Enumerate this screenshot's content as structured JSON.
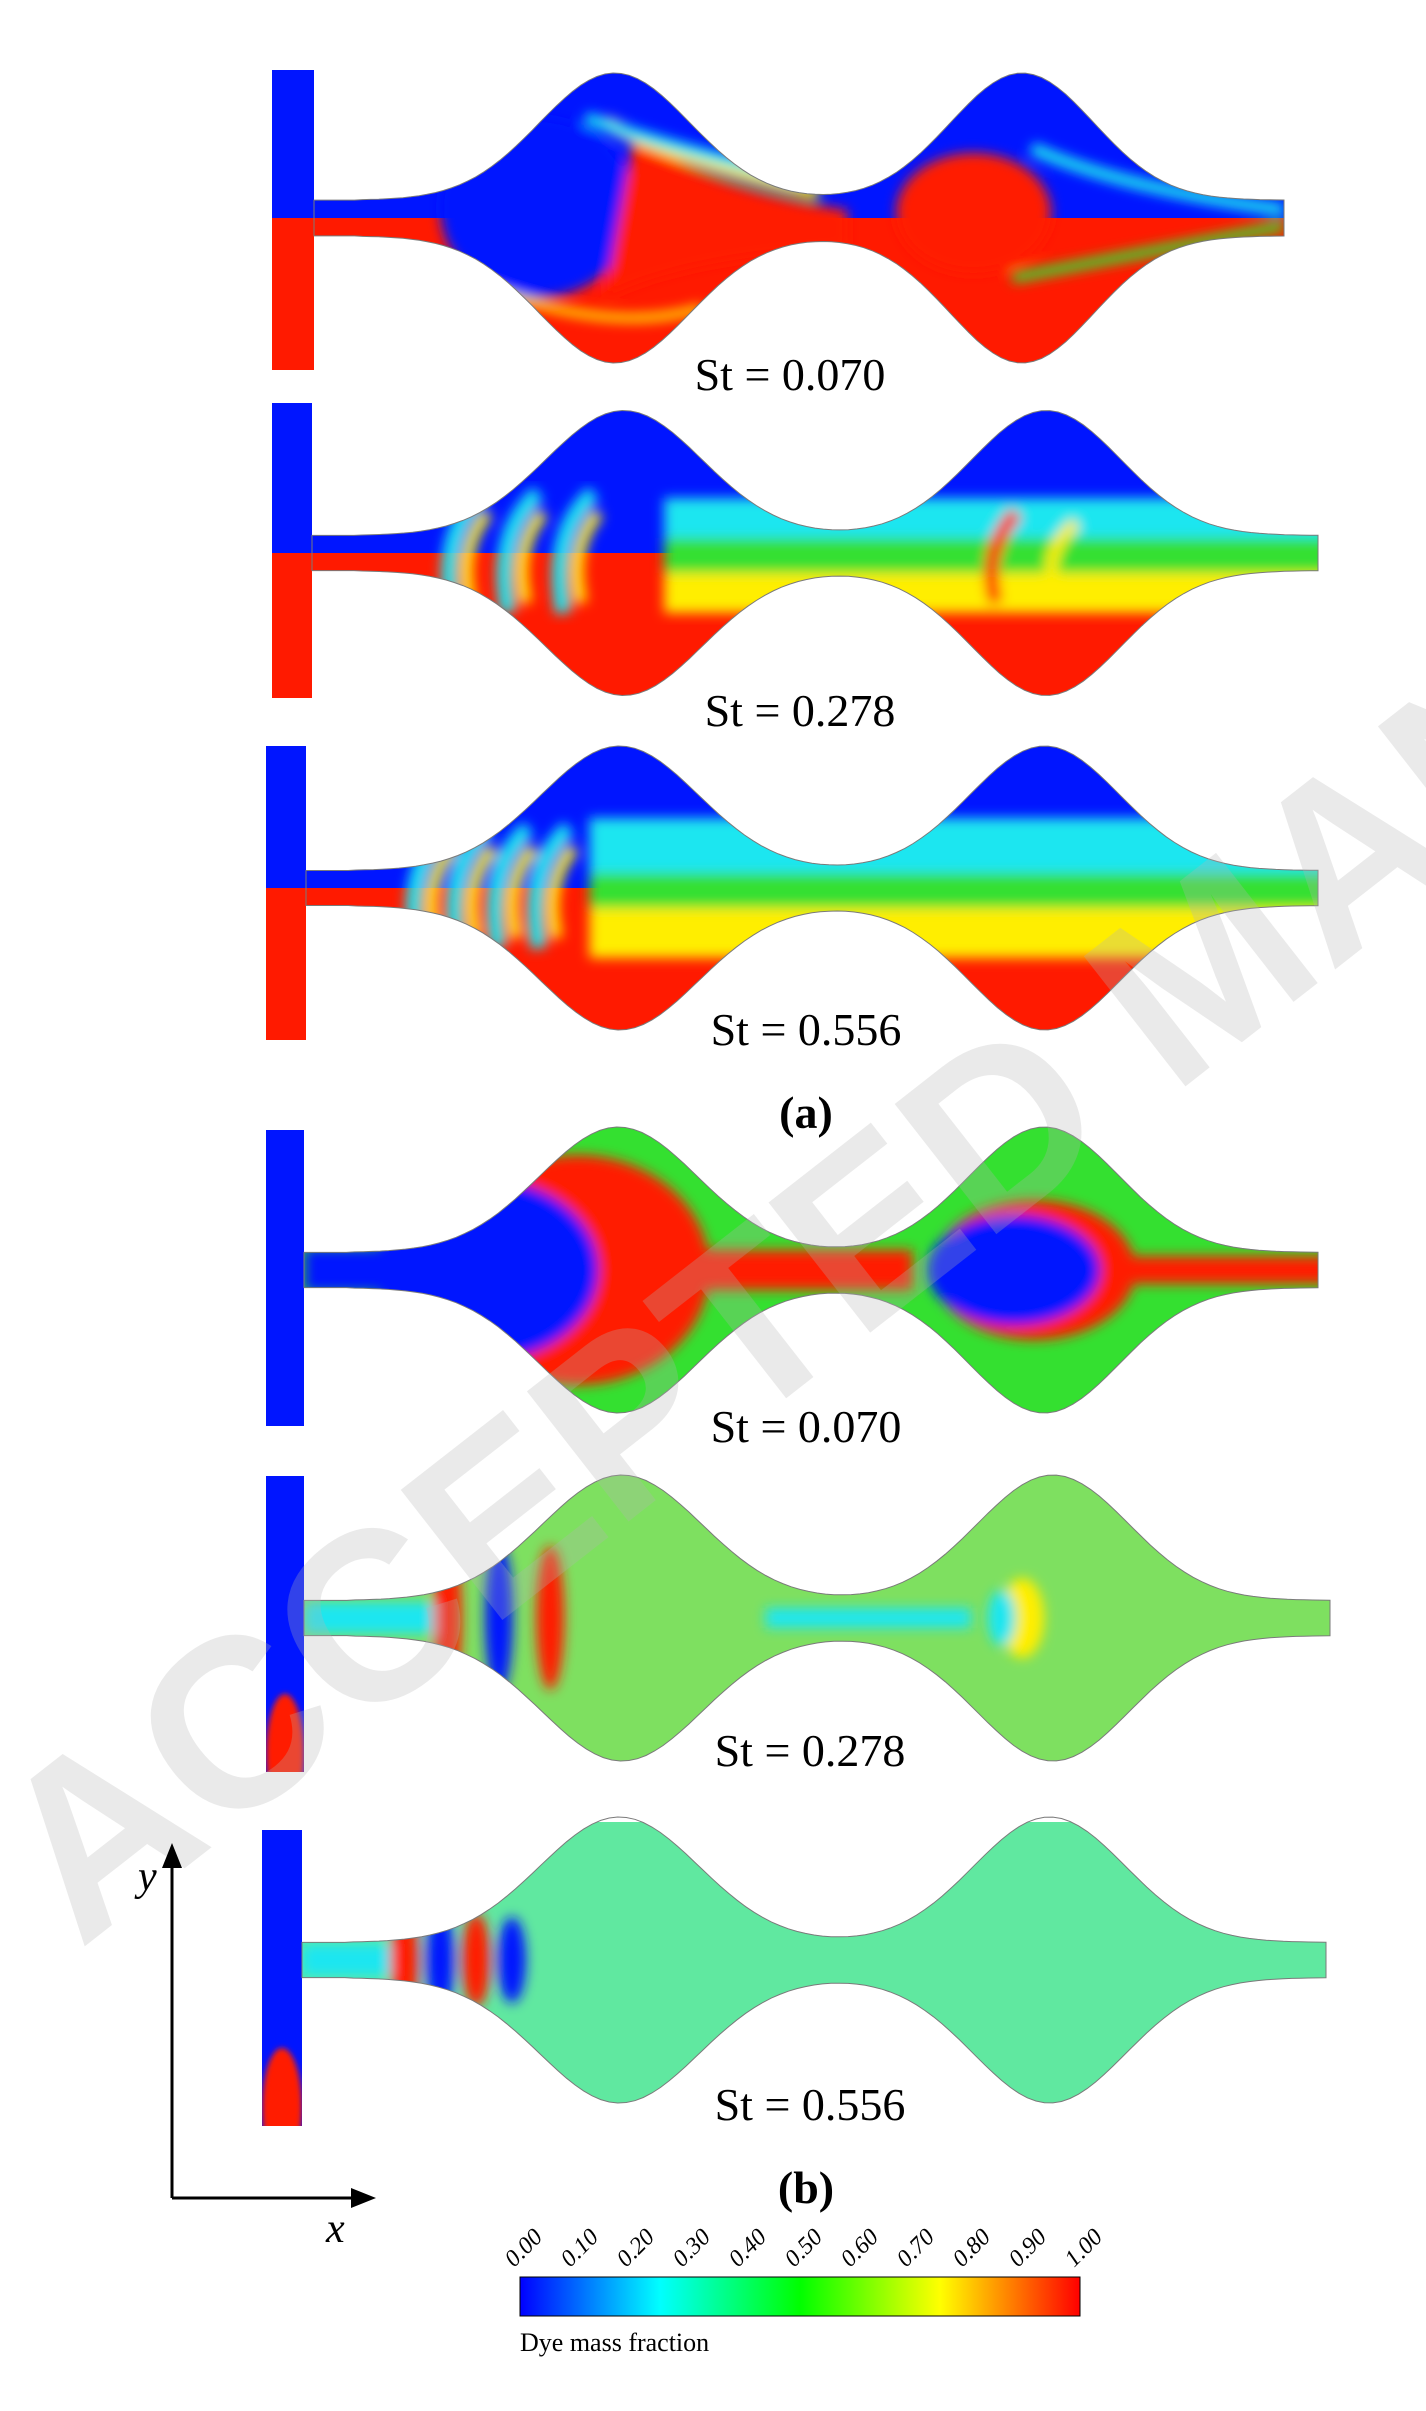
{
  "panels": [
    {
      "group": "a",
      "st_label": "St = 0.070",
      "pattern": "low"
    },
    {
      "group": "a",
      "st_label": "St = 0.278",
      "pattern": "mid"
    },
    {
      "group": "a",
      "st_label": "St = 0.556",
      "pattern": "high"
    },
    {
      "group": "b",
      "st_label": "St = 0.070",
      "pattern": "low"
    },
    {
      "group": "b",
      "st_label": "St = 0.278",
      "pattern": "mid"
    },
    {
      "group": "b",
      "st_label": "St = 0.556",
      "pattern": "high"
    }
  ],
  "part_labels": {
    "a": "(a)",
    "b": "(b)"
  },
  "axes": {
    "x": "x",
    "y": "y"
  },
  "colorbar": {
    "title": "Dye mass fraction",
    "ticks": [
      "0.00",
      "0.10",
      "0.20",
      "0.30",
      "0.40",
      "0.50",
      "0.60",
      "0.70",
      "0.80",
      "0.90",
      "1.00"
    ],
    "colors": [
      "#0000ff",
      "#0080ff",
      "#00ffff",
      "#00ff80",
      "#00ff00",
      "#80ff00",
      "#ffff00",
      "#ff8000",
      "#ff0000"
    ]
  },
  "colors": {
    "blue": "#0015ff",
    "red": "#ff1a00",
    "cyan": "#1ee6f0",
    "green": "#34e030",
    "yellow": "#ffee00",
    "light_green": "#7ee060"
  },
  "watermark": "ACCEPTED MANUSCRIPT"
}
